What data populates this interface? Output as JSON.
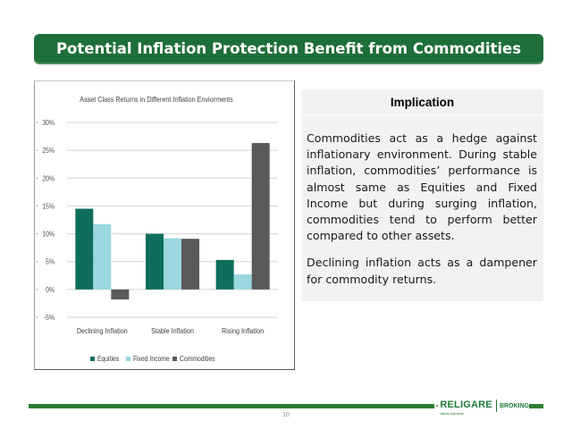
{
  "slide": {
    "title": "Potential Inflation Protection Benefit from Commodities",
    "page_number": "10"
  },
  "implication": {
    "heading": "Implication",
    "para1": "Commodities act as a hedge against inflationary environment. During stable inflation, commodities’ performance is almost same as Equities and Fixed Income but during surging inflation, commodities tend to perform better compared to other assets.",
    "para2": "Declining inflation acts as a dampener for commodity returns."
  },
  "logo": {
    "brand": "RELIGARE",
    "tagline": "Values that shine",
    "division": "BROKING",
    "color": "#1f7a36"
  },
  "chart_data": {
    "type": "bar",
    "title": "Asset Class Returns in Different Inflation Enviorments",
    "categories": [
      "Declining Inflation",
      "Stable Inflation",
      "Rising Inflation"
    ],
    "series": [
      {
        "name": "Equities",
        "color": "#0f6e5b",
        "values": [
          14.5,
          10.0,
          5.3
        ]
      },
      {
        "name": "Fixed Income",
        "color": "#9ad7de",
        "values": [
          11.7,
          9.2,
          2.7
        ]
      },
      {
        "name": "Commodities",
        "color": "#595959",
        "values": [
          -1.8,
          9.1,
          26.3
        ]
      }
    ],
    "ylim": [
      -5,
      30
    ],
    "yticks": [
      -5,
      0,
      5,
      10,
      15,
      20,
      25,
      30
    ],
    "ytick_labels": [
      "-5%",
      "0%",
      "5%",
      "10%",
      "15%",
      "20%",
      "25%",
      "30%"
    ],
    "grid": true,
    "legend": "bottom"
  },
  "colors": {
    "title_bar": "#1e6e3a",
    "panel_bg": "#f2f2f2",
    "footer_line": "#2e7d32"
  }
}
